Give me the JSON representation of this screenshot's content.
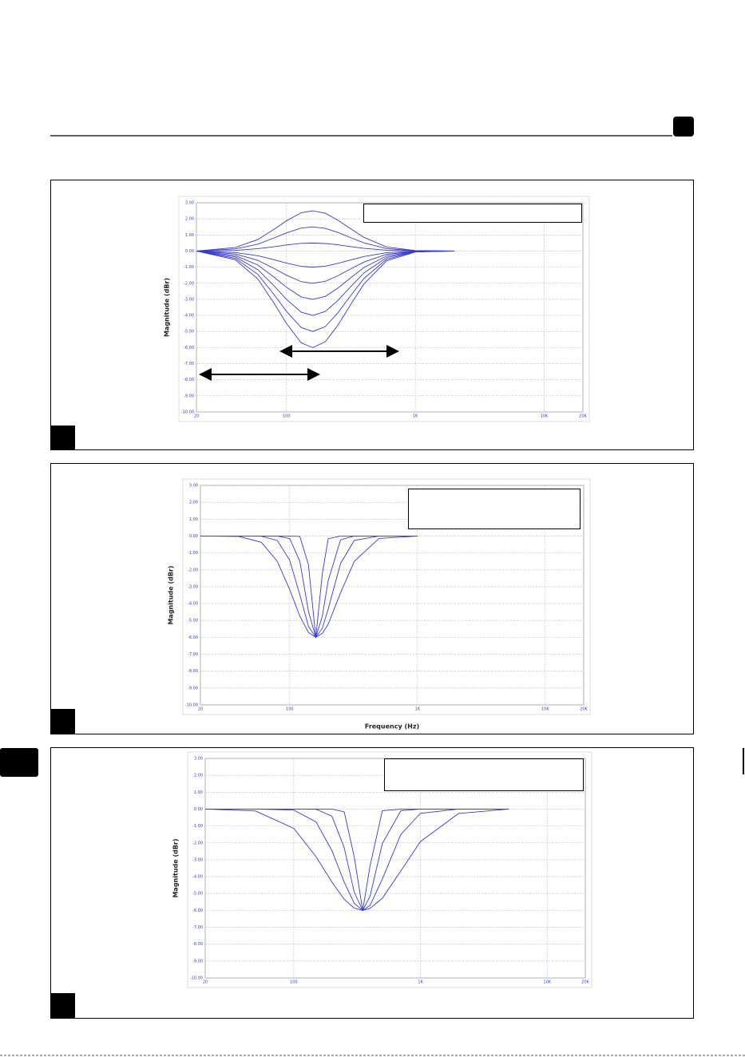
{
  "chart_data": [
    {
      "type": "line",
      "color": "#3a3ad0",
      "y_label": "Magnitude (dBr)",
      "xscale": "log",
      "grid": true,
      "xlim": [
        20,
        20000
      ],
      "xticks": [
        20,
        100,
        {
          "value": 1000,
          "label": "1K"
        },
        {
          "value": 10000,
          "label": "10K"
        },
        {
          "value": 20000,
          "label": "20K"
        }
      ],
      "ylim": [
        -10,
        3
      ],
      "yticks": [
        {
          "value": 3,
          "label": "3.00"
        },
        {
          "value": 2,
          "label": "2.00"
        },
        {
          "value": 1,
          "label": "1.00"
        },
        {
          "value": 0,
          "label": "0.00"
        },
        {
          "value": -1,
          "label": "-1.00"
        },
        {
          "value": -2,
          "label": "-2.00"
        },
        {
          "value": -3,
          "label": "-3.00"
        },
        {
          "value": -4,
          "label": "-4.00"
        },
        {
          "value": -5,
          "label": "-5.00"
        },
        {
          "value": -6,
          "label": "-6.00"
        },
        {
          "value": -7,
          "label": "-7.00"
        },
        {
          "value": -8,
          "label": "-8.00"
        },
        {
          "value": -9,
          "label": "-9.00"
        },
        {
          "value": -10,
          "label": "-10.00"
        }
      ],
      "x": [
        20,
        40,
        60,
        80,
        100,
        130,
        160,
        200,
        250,
        320,
        400,
        600,
        1000,
        2000
      ],
      "series": [
        {
          "values": [
            0,
            0.22,
            0.72,
            1.35,
            1.88,
            2.38,
            2.5,
            2.35,
            1.92,
            1.35,
            0.85,
            0.25,
            0.03,
            0
          ]
        },
        {
          "values": [
            0,
            0.13,
            0.43,
            0.81,
            1.13,
            1.43,
            1.5,
            1.41,
            1.16,
            0.81,
            0.51,
            0.15,
            0.02,
            0
          ]
        },
        {
          "values": [
            0,
            0.04,
            0.15,
            0.27,
            0.38,
            0.48,
            0.5,
            0.47,
            0.39,
            0.27,
            0.17,
            0.05,
            0.01,
            0
          ]
        },
        {
          "values": [
            0,
            -0.09,
            -0.29,
            -0.54,
            -0.75,
            -0.95,
            -1,
            -0.94,
            -0.77,
            -0.54,
            -0.34,
            -0.1,
            -0.01,
            0
          ]
        },
        {
          "values": [
            0,
            -0.18,
            -0.58,
            -1.08,
            -1.5,
            -1.9,
            -2,
            -1.88,
            -1.54,
            -1.08,
            -0.68,
            -0.2,
            -0.02,
            0
          ]
        },
        {
          "values": [
            0,
            -0.27,
            -0.87,
            -1.62,
            -2.25,
            -2.85,
            -3,
            -2.82,
            -2.31,
            -1.62,
            -1.02,
            -0.3,
            -0.03,
            0
          ]
        },
        {
          "values": [
            0,
            -0.36,
            -1.16,
            -2.16,
            -3,
            -3.8,
            -4,
            -3.76,
            -3.08,
            -2.16,
            -1.36,
            -0.4,
            -0.04,
            0
          ]
        },
        {
          "values": [
            0,
            -0.45,
            -1.45,
            -2.7,
            -3.75,
            -4.75,
            -5,
            -4.7,
            -3.85,
            -2.7,
            -1.7,
            -0.5,
            -0.05,
            0
          ]
        },
        {
          "values": [
            0,
            -0.54,
            -1.74,
            -3.24,
            -4.5,
            -5.7,
            -6,
            -5.64,
            -4.62,
            -3.24,
            -2.04,
            -0.6,
            -0.06,
            0
          ]
        }
      ]
    },
    {
      "type": "line",
      "color": "#3a3ad0",
      "y_label": "Magnitude (dBr)",
      "x_label": "Frequency (Hz)",
      "xscale": "log",
      "grid": true,
      "xlim": [
        20,
        20000
      ],
      "xticks": [
        20,
        100,
        {
          "value": 1000,
          "label": "1K"
        },
        {
          "value": 10000,
          "label": "10K"
        },
        {
          "value": 20000,
          "label": "20K"
        }
      ],
      "ylim": [
        -10,
        3
      ],
      "yticks": [
        {
          "value": 3,
          "label": "3.00"
        },
        {
          "value": 2,
          "label": "2.00"
        },
        {
          "value": 1,
          "label": "1.00"
        },
        {
          "value": 0,
          "label": "0.00"
        },
        {
          "value": -1,
          "label": "-1.00"
        },
        {
          "value": -2,
          "label": "-2.00"
        },
        {
          "value": -3,
          "label": "-3.00"
        },
        {
          "value": -4,
          "label": "-4.00"
        },
        {
          "value": -5,
          "label": "-5.00"
        },
        {
          "value": -6,
          "label": "-6.00"
        },
        {
          "value": -7,
          "label": "-7.00"
        },
        {
          "value": -8,
          "label": "-8.00"
        },
        {
          "value": -9,
          "label": "-9.00"
        },
        {
          "value": -10,
          "label": "-10.00"
        }
      ],
      "x": [
        20,
        40,
        60,
        80,
        100,
        120,
        140,
        160,
        180,
        200,
        250,
        320,
        500,
        1000
      ],
      "series": [
        {
          "values": [
            0,
            -0.02,
            -0.37,
            -1.5,
            -3.18,
            -4.74,
            -5.7,
            -6,
            -5.76,
            -5.22,
            -3.36,
            -1.5,
            -0.14,
            0
          ]
        },
        {
          "values": [
            0,
            0,
            -0.01,
            -0.26,
            -1.44,
            -3.48,
            -5.34,
            -6,
            -5.46,
            -4.32,
            -1.62,
            -0.26,
            0,
            0
          ]
        },
        {
          "values": [
            0,
            0,
            0,
            0,
            -0.15,
            -1.5,
            -4.44,
            -6,
            -4.74,
            -2.64,
            -0.22,
            0,
            0,
            0
          ]
        },
        {
          "values": [
            0,
            0,
            0,
            0,
            0,
            -0.02,
            -1.68,
            -6,
            -2.22,
            -0.16,
            0,
            0,
            0,
            0
          ]
        }
      ]
    },
    {
      "type": "line",
      "color": "#3a3ad0",
      "y_label": "Magnitude (dBr)",
      "xscale": "log",
      "grid": true,
      "xlim": [
        20,
        20000
      ],
      "xticks": [
        20,
        100,
        {
          "value": 1000,
          "label": "1K"
        },
        {
          "value": 10000,
          "label": "10K"
        },
        {
          "value": 20000,
          "label": "20K"
        }
      ],
      "ylim": [
        -10,
        3
      ],
      "yticks": [
        {
          "value": 3,
          "label": "3.00"
        },
        {
          "value": 2,
          "label": "2.00"
        },
        {
          "value": 1,
          "label": "1.00"
        },
        {
          "value": 0,
          "label": "0.00"
        },
        {
          "value": -1,
          "label": "-1.00"
        },
        {
          "value": -2,
          "label": "-2.00"
        },
        {
          "value": -3,
          "label": "-3.00"
        },
        {
          "value": -4,
          "label": "-4.00"
        },
        {
          "value": -5,
          "label": "-5.00"
        },
        {
          "value": -6,
          "label": "-6.00"
        },
        {
          "value": -7,
          "label": "-7.00"
        },
        {
          "value": -8,
          "label": "-8.00"
        },
        {
          "value": -9,
          "label": "-9.00"
        },
        {
          "value": -10,
          "label": "-10.00"
        }
      ],
      "x": [
        20,
        50,
        100,
        150,
        200,
        250,
        300,
        350,
        400,
        500,
        700,
        1000,
        2000,
        5000
      ],
      "series": [
        {
          "values": [
            0,
            -0.11,
            -1.14,
            -2.82,
            -4.32,
            -5.34,
            -5.86,
            -6,
            -5.88,
            -5.28,
            -3.66,
            -1.92,
            -0.26,
            0
          ]
        },
        {
          "values": [
            0,
            0,
            -0.06,
            -0.76,
            -2.46,
            -4.32,
            -5.58,
            -6,
            -5.7,
            -4.14,
            -1.5,
            -0.25,
            0,
            0
          ]
        },
        {
          "values": [
            0,
            0,
            0,
            -0.01,
            -0.42,
            -2.28,
            -4.92,
            -6,
            -5.16,
            -2.04,
            -0.1,
            0,
            0,
            0
          ]
        },
        {
          "values": [
            0,
            0,
            0,
            0,
            0,
            -0.16,
            -2.82,
            -6,
            -3.36,
            -0.1,
            0,
            0,
            0,
            0
          ]
        }
      ]
    }
  ]
}
